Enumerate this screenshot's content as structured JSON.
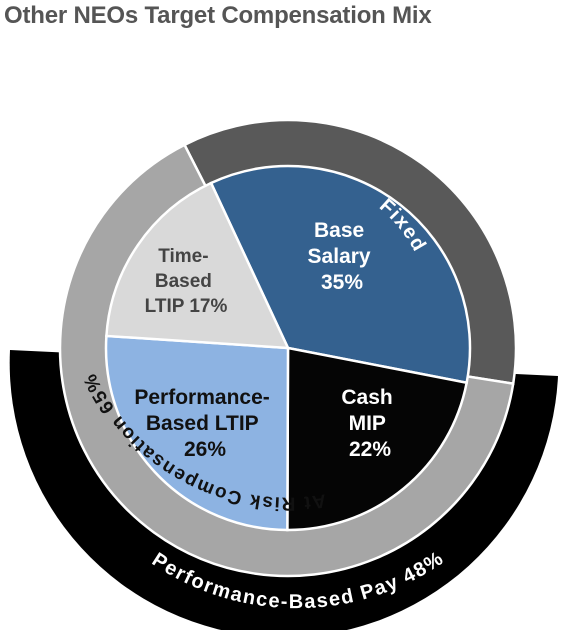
{
  "chart_data": {
    "type": "pie",
    "title": "Other NEOs Target Compensation Mix",
    "slices": [
      {
        "line1": "Base",
        "line2": "Salary",
        "line3": "35%",
        "value": 35,
        "color": "#34618f",
        "text_color": "#ffffff"
      },
      {
        "line1": "Cash",
        "line2": "MIP",
        "line3": "22%",
        "value": 22,
        "color": "#050505",
        "text_color": "#ffffff"
      },
      {
        "line1": "Performance-",
        "line2": "Based LTIP",
        "line3": "26%",
        "value": 26,
        "color": "#8db3e2",
        "text_color": "#111111"
      },
      {
        "line1": "Time-",
        "line2": "Based",
        "line3": "LTIP 17%",
        "value": 17,
        "color": "#d9d9d9",
        "text_color": "#444444"
      }
    ],
    "rings": {
      "fixed": {
        "label": "Fixed",
        "value": 35,
        "color": "#595959"
      },
      "at_risk": {
        "label": "At Risk Compensation 65%",
        "value": 65,
        "color": "#a6a6a6"
      },
      "performance_based": {
        "label": "Performance-Based Pay 48%",
        "value": 48,
        "color": "#000000"
      }
    }
  }
}
